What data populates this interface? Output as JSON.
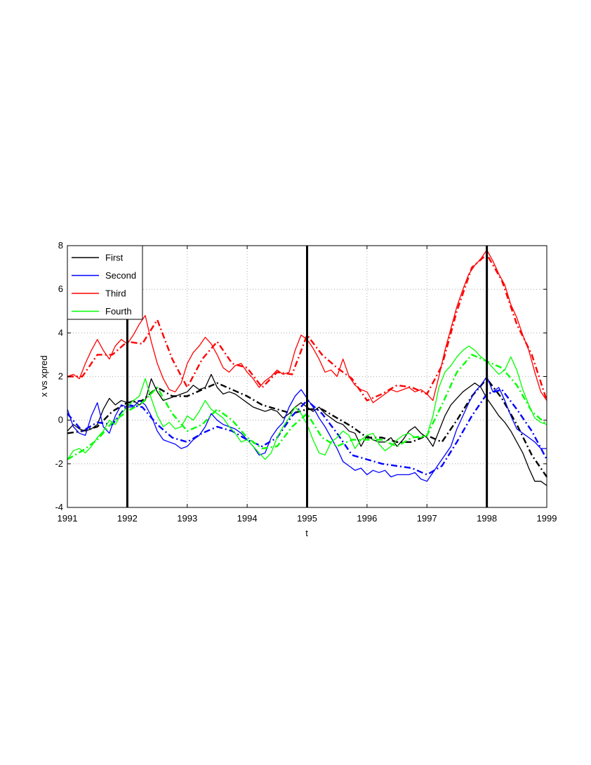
{
  "chart_data": {
    "type": "line",
    "title": "",
    "xlabel": "t",
    "ylabel": "x vs xpred",
    "xlim": [
      1991,
      1999
    ],
    "ylim": [
      -4,
      8
    ],
    "xticks": [
      1991,
      1992,
      1993,
      1994,
      1995,
      1996,
      1997,
      1998,
      1999
    ],
    "yticks": [
      -4,
      -2,
      0,
      2,
      4,
      6,
      8
    ],
    "grid": true,
    "legend_position": "top-left",
    "vertical_lines": [
      1992,
      1995,
      1998
    ],
    "series": [
      {
        "name": "First",
        "color": "#000000",
        "x": [
          1991.0,
          1991.1,
          1991.2,
          1991.3,
          1991.4,
          1991.5,
          1991.6,
          1991.7,
          1991.8,
          1991.9,
          1992.0,
          1992.1,
          1992.2,
          1992.3,
          1992.4,
          1992.5,
          1992.6,
          1992.7,
          1992.8,
          1992.9,
          1993.0,
          1993.1,
          1993.2,
          1993.3,
          1993.4,
          1993.5,
          1993.6,
          1993.7,
          1993.8,
          1993.9,
          1994.0,
          1994.1,
          1994.2,
          1994.3,
          1994.4,
          1994.5,
          1994.6,
          1994.7,
          1994.8,
          1994.9,
          1995.0,
          1995.1,
          1995.2,
          1995.3,
          1995.4,
          1995.5,
          1995.6,
          1995.7,
          1995.8,
          1995.9,
          1996.0,
          1996.1,
          1996.2,
          1996.3,
          1996.4,
          1996.5,
          1996.6,
          1996.7,
          1996.8,
          1996.9,
          1997.0,
          1997.1,
          1997.2,
          1997.3,
          1997.4,
          1997.5,
          1997.6,
          1997.7,
          1997.8,
          1997.9,
          1998.0,
          1998.1,
          1998.2,
          1998.3,
          1998.4,
          1998.5,
          1998.6,
          1998.7,
          1998.8,
          1998.9,
          1999.0
        ],
        "y": [
          -0.5,
          -0.2,
          -0.4,
          -0.5,
          -0.4,
          -0.2,
          0.5,
          1.0,
          0.7,
          0.9,
          0.8,
          0.9,
          0.7,
          0.9,
          1.9,
          1.3,
          0.9,
          1.0,
          1.1,
          1.2,
          1.3,
          1.6,
          1.4,
          1.5,
          2.1,
          1.5,
          1.2,
          1.3,
          1.2,
          1.0,
          0.8,
          0.6,
          0.5,
          0.4,
          0.5,
          0.4,
          0.1,
          0.3,
          0.6,
          0.8,
          0.6,
          0.4,
          0.6,
          0.3,
          0.1,
          -0.1,
          -0.2,
          -0.5,
          -0.6,
          -1.2,
          -0.7,
          -0.9,
          -1.0,
          -1.0,
          -0.8,
          -1.2,
          -0.9,
          -0.5,
          -0.3,
          -0.6,
          -0.8,
          -1.2,
          -0.5,
          0.2,
          0.7,
          1.0,
          1.3,
          1.5,
          1.7,
          1.5,
          1.0,
          0.6,
          0.2,
          -0.1,
          -0.5,
          -1.0,
          -1.5,
          -2.2,
          -2.8,
          -2.8,
          -3.0
        ]
      },
      {
        "name": "First (xpred)",
        "color": "#000000",
        "x": [
          1991.0,
          1991.25,
          1991.5,
          1991.75,
          1992.0,
          1992.25,
          1992.5,
          1992.75,
          1993.0,
          1993.25,
          1993.5,
          1993.75,
          1994.0,
          1994.25,
          1994.5,
          1994.75,
          1995.0,
          1995.25,
          1995.5,
          1995.75,
          1996.0,
          1996.25,
          1996.5,
          1996.75,
          1997.0,
          1997.25,
          1997.5,
          1997.75,
          1998.0,
          1998.25,
          1998.5,
          1998.75,
          1999.0
        ],
        "y": [
          -0.6,
          -0.5,
          -0.3,
          0.4,
          0.8,
          0.9,
          1.5,
          1.1,
          1.1,
          1.4,
          1.7,
          1.4,
          1.1,
          0.7,
          0.5,
          0.3,
          0.5,
          0.5,
          0.1,
          -0.3,
          -0.8,
          -0.8,
          -1.0,
          -1.0,
          -0.7,
          -1.0,
          0.0,
          1.1,
          1.9,
          1.0,
          -0.2,
          -1.6,
          -2.6
        ]
      },
      {
        "name": "Second",
        "color": "#0000ff",
        "x": [
          1991.0,
          1991.1,
          1991.2,
          1991.3,
          1991.4,
          1991.5,
          1991.6,
          1991.7,
          1991.8,
          1991.9,
          1992.0,
          1992.1,
          1992.2,
          1992.3,
          1992.4,
          1992.5,
          1992.6,
          1992.7,
          1992.8,
          1992.9,
          1993.0,
          1993.1,
          1993.2,
          1993.3,
          1993.4,
          1993.5,
          1993.6,
          1993.7,
          1993.8,
          1993.9,
          1994.0,
          1994.1,
          1994.2,
          1994.3,
          1994.4,
          1994.5,
          1994.6,
          1994.7,
          1994.8,
          1994.9,
          1995.0,
          1995.1,
          1995.2,
          1995.3,
          1995.4,
          1995.5,
          1995.6,
          1995.7,
          1995.8,
          1995.9,
          1996.0,
          1996.1,
          1996.2,
          1996.3,
          1996.4,
          1996.5,
          1996.6,
          1996.7,
          1996.8,
          1996.9,
          1997.0,
          1997.1,
          1997.2,
          1997.3,
          1997.4,
          1997.5,
          1997.6,
          1997.7,
          1997.8,
          1997.9,
          1998.0,
          1998.1,
          1998.2,
          1998.3,
          1998.4,
          1998.5,
          1998.6,
          1998.7,
          1998.8,
          1998.9,
          1999.0
        ],
        "y": [
          0.5,
          -0.3,
          -0.6,
          -0.7,
          0.2,
          0.8,
          -0.3,
          -0.6,
          0.2,
          0.7,
          0.6,
          0.6,
          0.9,
          0.7,
          0.2,
          -0.5,
          -0.9,
          -1.0,
          -1.1,
          -1.3,
          -1.2,
          -0.9,
          -0.7,
          -0.3,
          0.3,
          0.0,
          -0.2,
          -0.3,
          -0.4,
          -0.6,
          -0.9,
          -1.2,
          -1.6,
          -1.5,
          -0.8,
          -0.4,
          -0.1,
          0.6,
          1.1,
          1.4,
          1.0,
          0.6,
          0.1,
          -0.3,
          -0.8,
          -1.3,
          -1.9,
          -2.1,
          -2.3,
          -2.2,
          -2.5,
          -2.3,
          -2.4,
          -2.3,
          -2.6,
          -2.5,
          -2.5,
          -2.5,
          -2.4,
          -2.7,
          -2.8,
          -2.4,
          -2.0,
          -1.6,
          -1.2,
          -0.4,
          0.2,
          0.8,
          1.3,
          1.6,
          2.0,
          1.3,
          1.5,
          0.9,
          0.2,
          -0.4,
          -0.6,
          -0.8,
          -1.0,
          -1.3,
          -1.3
        ]
      },
      {
        "name": "Second (xpred)",
        "color": "#0000ff",
        "x": [
          1991.0,
          1991.25,
          1991.5,
          1991.75,
          1992.0,
          1992.25,
          1992.5,
          1992.75,
          1993.0,
          1993.25,
          1993.5,
          1993.75,
          1994.0,
          1994.25,
          1994.5,
          1994.75,
          1995.0,
          1995.25,
          1995.5,
          1995.75,
          1996.0,
          1996.25,
          1996.5,
          1996.75,
          1997.0,
          1997.25,
          1997.5,
          1997.75,
          1998.0,
          1998.25,
          1998.5,
          1998.75,
          1999.0
        ],
        "y": [
          0.3,
          -0.5,
          -0.1,
          -0.2,
          0.7,
          0.6,
          -0.2,
          -0.8,
          -1.0,
          -0.6,
          -0.3,
          -0.5,
          -0.9,
          -1.2,
          -0.8,
          0.2,
          0.9,
          0.3,
          -0.6,
          -1.6,
          -1.8,
          -2.0,
          -2.1,
          -2.2,
          -2.5,
          -2.1,
          -1.0,
          0.2,
          1.2,
          1.4,
          0.5,
          -0.5,
          -1.8
        ]
      },
      {
        "name": "Third",
        "color": "#ff0000",
        "x": [
          1991.0,
          1991.1,
          1991.2,
          1991.3,
          1991.4,
          1991.5,
          1991.6,
          1991.7,
          1991.8,
          1991.9,
          1992.0,
          1992.1,
          1992.2,
          1992.3,
          1992.4,
          1992.5,
          1992.6,
          1992.7,
          1992.8,
          1992.9,
          1993.0,
          1993.1,
          1993.2,
          1993.3,
          1993.4,
          1993.5,
          1993.6,
          1993.7,
          1993.8,
          1993.9,
          1994.0,
          1994.1,
          1994.2,
          1994.3,
          1994.4,
          1994.5,
          1994.6,
          1994.7,
          1994.8,
          1994.9,
          1995.0,
          1995.1,
          1995.2,
          1995.3,
          1995.4,
          1995.5,
          1995.6,
          1995.7,
          1995.8,
          1995.9,
          1996.0,
          1996.1,
          1996.2,
          1996.3,
          1996.4,
          1996.5,
          1996.6,
          1996.7,
          1996.8,
          1996.9,
          1997.0,
          1997.1,
          1997.2,
          1997.3,
          1997.4,
          1997.5,
          1997.6,
          1997.7,
          1997.8,
          1997.9,
          1998.0,
          1998.1,
          1998.2,
          1998.3,
          1998.4,
          1998.5,
          1998.6,
          1998.7,
          1998.8,
          1998.9,
          1999.0
        ],
        "y": [
          2.0,
          2.1,
          1.9,
          2.6,
          3.2,
          3.7,
          3.2,
          2.8,
          3.4,
          3.7,
          3.5,
          3.9,
          4.4,
          4.8,
          3.6,
          2.6,
          1.9,
          1.4,
          1.3,
          1.7,
          2.6,
          3.1,
          3.4,
          3.8,
          3.5,
          3.0,
          2.4,
          2.2,
          2.5,
          2.6,
          2.2,
          1.9,
          1.5,
          1.8,
          2.0,
          2.3,
          2.1,
          2.2,
          3.2,
          3.9,
          3.7,
          3.3,
          2.8,
          2.2,
          2.3,
          2.0,
          2.8,
          2.0,
          1.6,
          1.4,
          1.3,
          0.8,
          1.0,
          1.2,
          1.4,
          1.3,
          1.4,
          1.5,
          1.3,
          1.4,
          1.2,
          0.9,
          2.0,
          3.2,
          4.2,
          5.2,
          6.0,
          6.7,
          7.1,
          7.4,
          7.8,
          7.3,
          6.7,
          6.2,
          5.3,
          4.7,
          3.9,
          3.2,
          2.2,
          1.3,
          0.9
        ]
      },
      {
        "name": "Third (xpred)",
        "color": "#ff0000",
        "x": [
          1991.0,
          1991.25,
          1991.5,
          1991.75,
          1992.0,
          1992.25,
          1992.5,
          1992.75,
          1993.0,
          1993.25,
          1993.5,
          1993.75,
          1994.0,
          1994.25,
          1994.5,
          1994.75,
          1995.0,
          1995.25,
          1995.5,
          1995.75,
          1996.0,
          1996.25,
          1996.5,
          1996.75,
          1997.0,
          1997.25,
          1997.5,
          1997.75,
          1998.0,
          1998.25,
          1998.5,
          1998.75,
          1999.0
        ],
        "y": [
          2.0,
          2.0,
          3.0,
          3.0,
          3.6,
          3.5,
          4.6,
          2.8,
          1.5,
          2.8,
          3.6,
          2.6,
          2.4,
          1.5,
          2.2,
          2.1,
          3.9,
          3.0,
          2.4,
          1.9,
          0.9,
          1.2,
          1.6,
          1.5,
          1.2,
          2.5,
          5.0,
          7.0,
          7.6,
          6.4,
          4.4,
          3.0,
          0.9
        ]
      },
      {
        "name": "Fourth",
        "color": "#00ff00",
        "x": [
          1991.0,
          1991.1,
          1991.2,
          1991.3,
          1991.4,
          1991.5,
          1991.6,
          1991.7,
          1991.8,
          1991.9,
          1992.0,
          1992.1,
          1992.2,
          1992.3,
          1992.4,
          1992.5,
          1992.6,
          1992.7,
          1992.8,
          1992.9,
          1993.0,
          1993.1,
          1993.2,
          1993.3,
          1993.4,
          1993.5,
          1993.6,
          1993.7,
          1993.8,
          1993.9,
          1994.0,
          1994.1,
          1994.2,
          1994.3,
          1994.4,
          1994.5,
          1994.6,
          1994.7,
          1994.8,
          1994.9,
          1995.0,
          1995.1,
          1995.2,
          1995.3,
          1995.4,
          1995.5,
          1995.6,
          1995.7,
          1995.8,
          1995.9,
          1996.0,
          1996.1,
          1996.2,
          1996.3,
          1996.4,
          1996.5,
          1996.6,
          1996.7,
          1996.8,
          1996.9,
          1997.0,
          1997.1,
          1997.2,
          1997.3,
          1997.4,
          1997.5,
          1997.6,
          1997.7,
          1997.8,
          1997.9,
          1998.0,
          1998.1,
          1998.2,
          1998.3,
          1998.4,
          1998.5,
          1998.6,
          1998.7,
          1998.8,
          1998.9,
          1999.0
        ],
        "y": [
          -1.8,
          -1.4,
          -1.3,
          -1.5,
          -1.2,
          -0.8,
          -0.5,
          0.0,
          -0.2,
          0.3,
          0.6,
          0.9,
          1.1,
          1.9,
          1.0,
          0.2,
          -0.3,
          -0.1,
          -0.4,
          -0.3,
          0.2,
          0.0,
          0.4,
          0.9,
          0.5,
          0.3,
          0.1,
          -0.3,
          -0.6,
          -1.0,
          -0.9,
          -1.2,
          -1.5,
          -1.8,
          -1.5,
          -0.8,
          -0.3,
          0.1,
          0.6,
          0.3,
          -0.2,
          -0.9,
          -1.5,
          -1.6,
          -1.0,
          -0.8,
          -0.5,
          -0.7,
          -1.3,
          -0.9,
          -0.7,
          -0.6,
          -1.1,
          -1.4,
          -1.2,
          -0.9,
          -0.7,
          -0.6,
          -0.8,
          -0.8,
          -0.7,
          0.2,
          1.5,
          2.2,
          2.5,
          2.9,
          3.2,
          3.4,
          3.2,
          2.9,
          2.7,
          2.4,
          2.1,
          2.3,
          2.9,
          2.3,
          1.4,
          0.7,
          0.1,
          -0.1,
          -0.2
        ]
      },
      {
        "name": "Fourth (xpred)",
        "color": "#00ff00",
        "x": [
          1991.0,
          1991.25,
          1991.5,
          1991.75,
          1992.0,
          1992.25,
          1992.5,
          1992.75,
          1993.0,
          1993.25,
          1993.5,
          1993.75,
          1994.0,
          1994.25,
          1994.5,
          1994.75,
          1995.0,
          1995.25,
          1995.5,
          1995.75,
          1996.0,
          1996.25,
          1996.5,
          1996.75,
          1997.0,
          1997.25,
          1997.5,
          1997.75,
          1998.0,
          1998.25,
          1998.5,
          1998.75,
          1999.0
        ],
        "y": [
          -1.8,
          -1.4,
          -0.9,
          -0.1,
          0.4,
          0.8,
          1.5,
          0.3,
          -0.5,
          -0.2,
          0.5,
          0.0,
          -0.8,
          -1.3,
          -1.2,
          -0.3,
          0.3,
          -0.8,
          -1.2,
          -0.9,
          -0.9,
          -0.9,
          -1.2,
          -0.8,
          -0.7,
          0.7,
          2.2,
          3.0,
          2.7,
          2.4,
          1.6,
          0.4,
          -0.2
        ]
      }
    ]
  }
}
